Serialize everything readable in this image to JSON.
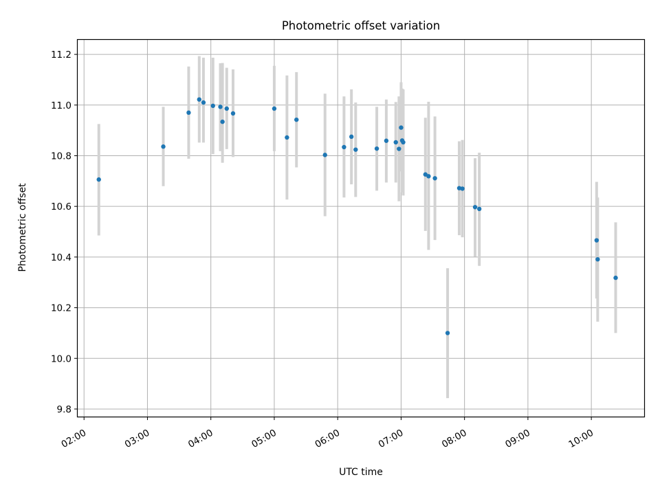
{
  "chart_data": {
    "type": "scatter",
    "title": "Photometric offset variation",
    "xlabel": "UTC time",
    "ylabel": "Photometric offset",
    "x_is_time": true,
    "xlim": [
      "01:54",
      "10:50"
    ],
    "ylim": [
      9.77,
      11.26
    ],
    "x_ticks": [
      "02:00",
      "03:00",
      "04:00",
      "05:00",
      "06:00",
      "07:00",
      "08:00",
      "09:00",
      "10:00"
    ],
    "y_ticks": [
      "9.8",
      "10.0",
      "10.2",
      "10.4",
      "10.6",
      "10.8",
      "11.0",
      "11.2"
    ],
    "grid": true,
    "point_color": "#1f77b4",
    "errorbar_color": "#d3d3d3",
    "series": [
      {
        "points": [
          {
            "t": "02:14",
            "y": 10.706,
            "lo": 10.485,
            "hi": 10.925
          },
          {
            "t": "03:15",
            "y": 10.836,
            "lo": 10.68,
            "hi": 10.993
          },
          {
            "t": "03:39",
            "y": 10.97,
            "lo": 10.788,
            "hi": 11.152
          },
          {
            "t": "03:49",
            "y": 11.022,
            "lo": 10.852,
            "hi": 11.193
          },
          {
            "t": "03:53",
            "y": 11.01,
            "lo": 10.852,
            "hi": 11.187
          },
          {
            "t": "04:02",
            "y": 10.997,
            "lo": 10.806,
            "hi": 11.187
          },
          {
            "t": "04:09",
            "y": 10.993,
            "lo": 10.818,
            "hi": 11.165
          },
          {
            "t": "04:11",
            "y": 10.934,
            "lo": 10.772,
            "hi": 11.166
          },
          {
            "t": "04:15",
            "y": 10.986,
            "lo": 10.826,
            "hi": 11.147
          },
          {
            "t": "04:21",
            "y": 10.967,
            "lo": 10.795,
            "hi": 11.141
          },
          {
            "t": "05:00",
            "y": 10.986,
            "lo": 10.818,
            "hi": 11.155
          },
          {
            "t": "05:12",
            "y": 10.872,
            "lo": 10.627,
            "hi": 11.117
          },
          {
            "t": "05:21",
            "y": 10.942,
            "lo": 10.754,
            "hi": 11.13
          },
          {
            "t": "05:48",
            "y": 10.803,
            "lo": 10.561,
            "hi": 11.045
          },
          {
            "t": "06:06",
            "y": 10.834,
            "lo": 10.635,
            "hi": 11.034
          },
          {
            "t": "06:13",
            "y": 10.875,
            "lo": 10.687,
            "hi": 11.062
          },
          {
            "t": "06:17",
            "y": 10.824,
            "lo": 10.637,
            "hi": 11.01
          },
          {
            "t": "06:37",
            "y": 10.828,
            "lo": 10.662,
            "hi": 10.993
          },
          {
            "t": "06:46",
            "y": 10.859,
            "lo": 10.694,
            "hi": 11.022
          },
          {
            "t": "06:55",
            "y": 10.853,
            "lo": 10.694,
            "hi": 11.012
          },
          {
            "t": "06:58",
            "y": 10.827,
            "lo": 10.62,
            "hi": 11.034
          },
          {
            "t": "07:00",
            "y": 10.911,
            "lo": 10.738,
            "hi": 11.09
          },
          {
            "t": "07:01",
            "y": 10.86,
            "lo": 10.655,
            "hi": 11.065
          },
          {
            "t": "07:02",
            "y": 10.853,
            "lo": 10.643,
            "hi": 11.062
          },
          {
            "t": "07:23",
            "y": 10.726,
            "lo": 10.503,
            "hi": 10.95
          },
          {
            "t": "07:26",
            "y": 10.719,
            "lo": 10.428,
            "hi": 11.013
          },
          {
            "t": "07:32",
            "y": 10.711,
            "lo": 10.467,
            "hi": 10.955
          },
          {
            "t": "07:44",
            "y": 10.1,
            "lo": 9.843,
            "hi": 10.356
          },
          {
            "t": "07:55",
            "y": 10.672,
            "lo": 10.486,
            "hi": 10.857
          },
          {
            "t": "07:58",
            "y": 10.67,
            "lo": 10.478,
            "hi": 10.862
          },
          {
            "t": "08:10",
            "y": 10.597,
            "lo": 10.401,
            "hi": 10.79
          },
          {
            "t": "08:14",
            "y": 10.59,
            "lo": 10.365,
            "hi": 10.812
          },
          {
            "t": "10:05",
            "y": 10.466,
            "lo": 10.236,
            "hi": 10.697
          },
          {
            "t": "10:06",
            "y": 10.391,
            "lo": 10.145,
            "hi": 10.635
          },
          {
            "t": "10:23",
            "y": 10.318,
            "lo": 10.1,
            "hi": 10.537
          }
        ]
      }
    ]
  }
}
